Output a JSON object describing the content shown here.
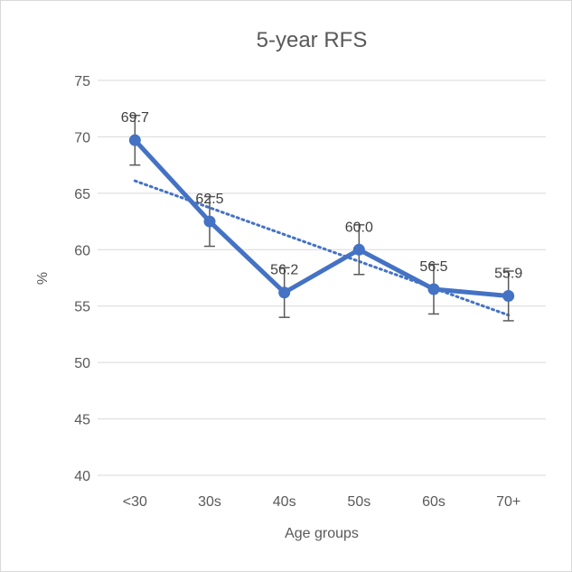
{
  "chart_data": {
    "type": "line",
    "title": "5-year RFS",
    "xlabel": "Age groups",
    "ylabel": "%",
    "categories": [
      "<30",
      "30s",
      "40s",
      "50s",
      "60s",
      "70+"
    ],
    "ylim": [
      40,
      75
    ],
    "yticks": [
      40,
      45,
      50,
      55,
      60,
      65,
      70,
      75
    ],
    "grid": true,
    "legend": "none",
    "series": [
      {
        "name": "5-year RFS",
        "values": [
          69.7,
          62.5,
          56.2,
          60.0,
          56.5,
          55.9
        ],
        "data_labels": [
          "69.7",
          "62.5",
          "56.2",
          "60.0",
          "56.5",
          "55.9"
        ],
        "error_low": [
          67.5,
          60.3,
          54.0,
          57.8,
          54.3,
          53.7
        ],
        "error_high": [
          71.9,
          64.7,
          58.4,
          62.2,
          58.7,
          58.1
        ],
        "color": "#4472c4"
      }
    ],
    "trendline": {
      "type": "linear",
      "style": "dotted",
      "color": "#4472c4",
      "start": 66.1,
      "end": 54.2
    },
    "colors": {
      "gridline": "#d9d9d9",
      "error_bar": "#595959",
      "text": "#595959"
    }
  }
}
